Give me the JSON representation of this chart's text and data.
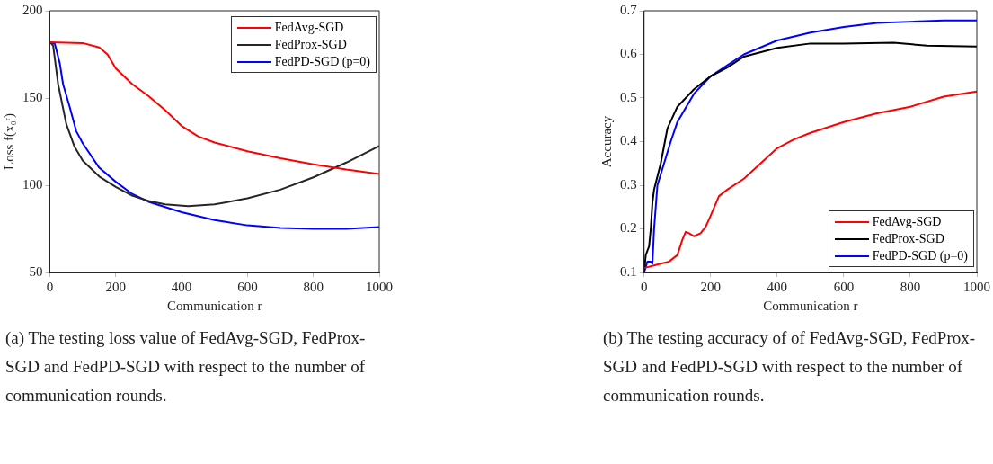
{
  "chart_data": [
    {
      "type": "line",
      "xlabel": "Communication r",
      "ylabel": "Loss f(x₀ʳ)",
      "xlim": [
        0,
        1000
      ],
      "ylim": [
        50,
        200
      ],
      "xticks": [
        0,
        200,
        400,
        600,
        800,
        1000
      ],
      "yticks": [
        50,
        100,
        150,
        200
      ],
      "grid": false,
      "legend": "top right",
      "marker": "none",
      "line_style": "solid",
      "annotations": [
        "(a) The testing loss value of FedAvg-SGD, FedProx-SGD and FedPD-SGD with respect to the number of communication rounds."
      ],
      "series": [
        {
          "name": "FedAvg-SGD",
          "color": "#ff0000",
          "x": [
            0,
            100,
            150,
            175,
            200,
            250,
            300,
            350,
            400,
            450,
            500,
            600,
            700,
            800,
            900,
            1000
          ],
          "values": [
            182,
            181.5,
            179,
            175,
            167,
            158,
            151,
            143,
            134,
            128,
            124.5,
            119.5,
            115.5,
            112,
            109,
            106.5
          ]
        },
        {
          "name": "FedProx-SGD",
          "color": "#262626",
          "x": [
            0,
            10,
            25,
            50,
            75,
            100,
            150,
            200,
            250,
            300,
            350,
            420,
            500,
            600,
            700,
            800,
            900,
            1000
          ],
          "values": [
            182,
            180,
            158,
            135,
            122,
            114,
            105,
            99,
            94,
            91,
            89,
            88,
            89,
            92.5,
            97.5,
            104.5,
            113,
            122.5
          ]
        },
        {
          "name": "FedPD-SGD (p=0)",
          "color": "#0000ff",
          "x": [
            0,
            15,
            30,
            40,
            60,
            80,
            100,
            150,
            200,
            250,
            300,
            350,
            400,
            500,
            600,
            700,
            800,
            900,
            1000
          ],
          "values": [
            182,
            181,
            170,
            158,
            145,
            131,
            124,
            110,
            102,
            95,
            90.5,
            87.5,
            84.5,
            80,
            77,
            75.5,
            75,
            75,
            76
          ]
        }
      ]
    },
    {
      "type": "line",
      "xlabel": "Communication r",
      "ylabel": "Accuracy",
      "xlim": [
        0,
        1000
      ],
      "ylim": [
        0.1,
        0.7
      ],
      "xticks": [
        0,
        200,
        400,
        600,
        800,
        1000
      ],
      "yticks": [
        0.1,
        0.2,
        0.3,
        0.4,
        0.5,
        0.6,
        0.7
      ],
      "grid": false,
      "legend": "bottom right",
      "marker": "none",
      "line_style": "solid",
      "annotations": [
        "(b) The testing accuracy of of FedAvg-SGD, FedProx-SGD and FedPD-SGD with respect to the number of communication rounds."
      ],
      "series": [
        {
          "name": "FedAvg-SGD",
          "color": "#ff0000",
          "x": [
            0,
            50,
            75,
            100,
            115,
            125,
            135,
            150,
            170,
            185,
            200,
            225,
            250,
            300,
            350,
            400,
            450,
            500,
            600,
            700,
            800,
            900,
            1000
          ],
          "values": [
            0.11,
            0.12,
            0.125,
            0.14,
            0.175,
            0.193,
            0.19,
            0.183,
            0.19,
            0.205,
            0.23,
            0.275,
            0.29,
            0.315,
            0.35,
            0.385,
            0.405,
            0.42,
            0.445,
            0.465,
            0.48,
            0.503,
            0.515
          ]
        },
        {
          "name": "FedProx-SGD",
          "color": "#000000",
          "x": [
            0,
            5,
            10,
            15,
            20,
            25,
            30,
            50,
            70,
            100,
            150,
            200,
            250,
            300,
            400,
            500,
            600,
            750,
            850,
            1000
          ],
          "values": [
            0.1,
            0.14,
            0.15,
            0.16,
            0.2,
            0.26,
            0.29,
            0.35,
            0.43,
            0.48,
            0.52,
            0.55,
            0.57,
            0.595,
            0.615,
            0.625,
            0.625,
            0.627,
            0.62,
            0.618
          ]
        },
        {
          "name": "FedPD-SGD (p=0)",
          "color": "#0000ff",
          "x": [
            0,
            10,
            20,
            25,
            30,
            40,
            60,
            80,
            100,
            150,
            200,
            250,
            300,
            400,
            500,
            600,
            700,
            800,
            900,
            1000
          ],
          "values": [
            0.1,
            0.125,
            0.125,
            0.12,
            0.2,
            0.3,
            0.35,
            0.4,
            0.445,
            0.51,
            0.55,
            0.575,
            0.6,
            0.632,
            0.65,
            0.663,
            0.672,
            0.675,
            0.678,
            0.678
          ]
        }
      ]
    }
  ]
}
